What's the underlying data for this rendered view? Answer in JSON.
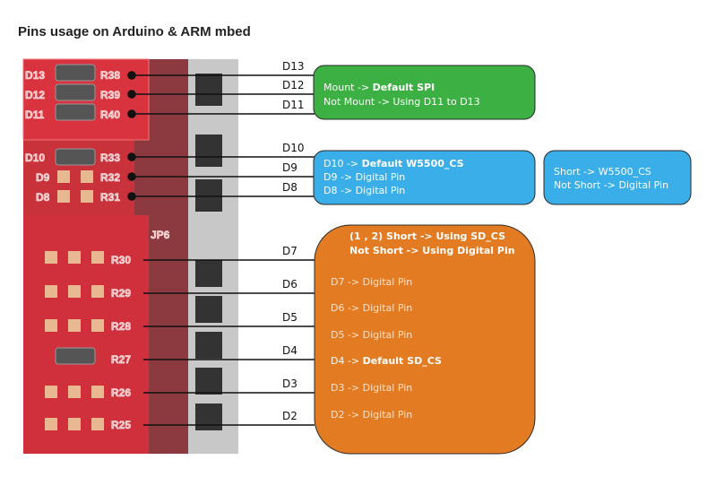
{
  "title": "Pins usage on Arduino & ARM mbed",
  "pcb": {
    "silkscreen": [
      "D13",
      "R38",
      "D12",
      "R39",
      "D11",
      "R40",
      "D10",
      "R33",
      "D9",
      "R32",
      "D8",
      "R31",
      "JP6",
      "R30",
      "R29",
      "R28",
      "R27",
      "R26",
      "R25"
    ]
  },
  "pins": [
    "D13",
    "D12",
    "D11",
    "D10",
    "D9",
    "D8",
    "D7",
    "D6",
    "D5",
    "D4",
    "D3",
    "D2"
  ],
  "green_box": {
    "color": "#3cb043",
    "line1_prefix": "Mount -> ",
    "line1_bold": "Default SPI",
    "line2": "Not Mount -> Using D11 to D13"
  },
  "blue_box": {
    "color": "#3aaee8",
    "line1_prefix": "D10 -> ",
    "line1_bold": "Default W5500_CS",
    "line2": "D9 -> Digital Pin",
    "line3": "D8 -> Digital Pin"
  },
  "blue_box2": {
    "line1": "Short -> W5500_CS",
    "line2": "Not Short -> Digital Pin"
  },
  "orange_box": {
    "color": "#e37b22",
    "header1": "(1 , 2) Short -> Using SD_CS",
    "header2": "Not Short -> Using Digital Pin",
    "d7": "D7 -> Digital Pin",
    "d6": "D6 -> Digital Pin",
    "d5": "D5 -> Digital Pin",
    "d4_prefix": "D4 -> ",
    "d4_bold": "Default SD_CS",
    "d3": "D3 -> Digital Pin",
    "d2": "D2 -> Digital Pin"
  }
}
